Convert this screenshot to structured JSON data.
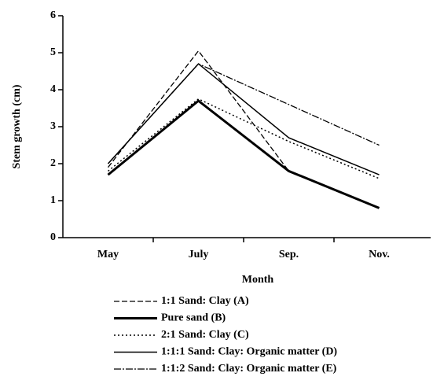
{
  "chart_data": {
    "type": "line",
    "xlabel": "Month",
    "ylabel": "Stem growth (cm)",
    "categories": [
      "May",
      "July",
      "Sep.",
      "Nov."
    ],
    "ylim": [
      0,
      6
    ],
    "yticks": [
      0,
      1,
      2,
      3,
      4,
      5,
      6
    ],
    "series": [
      {
        "name": "1:1 Sand: Clay (A)",
        "color": "#000000",
        "dash": "7,3",
        "width": 1.3,
        "values": [
          1.9,
          5.05,
          1.8,
          0.8
        ]
      },
      {
        "name": "Pure sand (B)",
        "color": "#000000",
        "dash": "none",
        "width": 3,
        "values": [
          1.7,
          3.7,
          1.8,
          0.8
        ]
      },
      {
        "name": "2:1 Sand: Clay (C)",
        "color": "#000000",
        "dash": "2,3",
        "width": 1.5,
        "values": [
          1.8,
          3.75,
          2.6,
          1.6
        ]
      },
      {
        "name": "1:1:1 Sand: Clay: Organic matter (D)",
        "color": "#000000",
        "dash": "none",
        "width": 1.5,
        "values": [
          2.0,
          4.7,
          2.7,
          1.7
        ]
      },
      {
        "name": "1:1:2 Sand: Clay: Organic matter (E)",
        "color": "#000000",
        "dash": "9,2,2,2",
        "width": 1.3,
        "values": [
          2.0,
          4.7,
          3.6,
          2.5
        ]
      }
    ]
  }
}
